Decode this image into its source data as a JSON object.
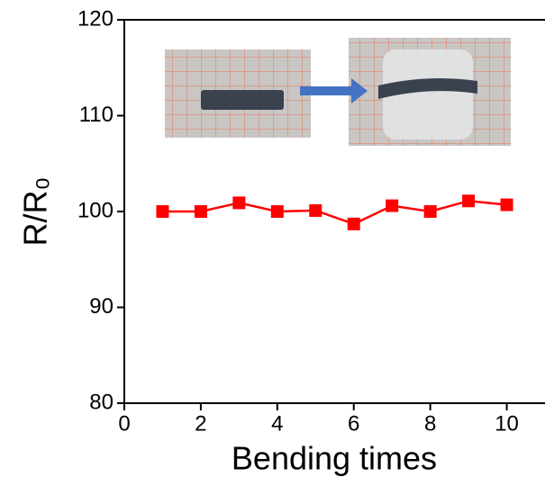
{
  "chart_data": {
    "type": "line",
    "xlabel": "Bending times",
    "ylabel": "R/R₀",
    "x": [
      1,
      2,
      3,
      4,
      5,
      6,
      7,
      8,
      9,
      10
    ],
    "series": [
      {
        "color": "#ff0000",
        "values": [
          100,
          100,
          100.9,
          100,
          100.1,
          98.7,
          100.6,
          100,
          101.1,
          100.7
        ]
      }
    ],
    "xlim": [
      0,
      11
    ],
    "ylim": [
      80,
      120
    ],
    "xticks": [
      0,
      2,
      4,
      6,
      8,
      10
    ],
    "yticks": [
      80,
      90,
      100,
      110,
      120
    ]
  }
}
